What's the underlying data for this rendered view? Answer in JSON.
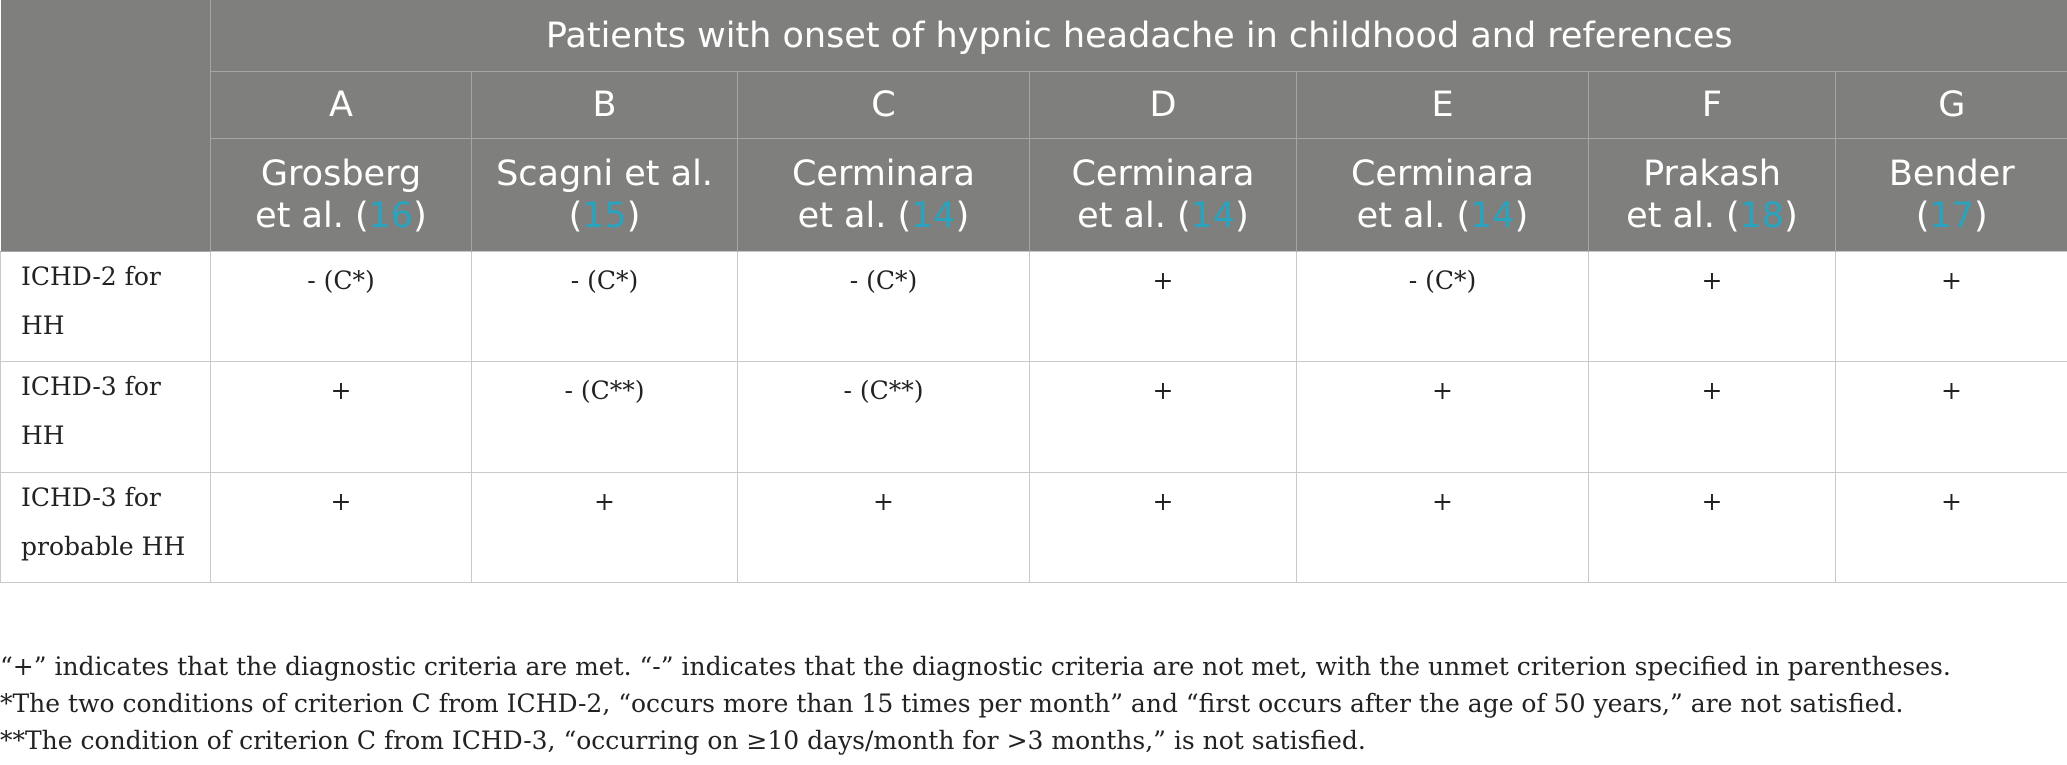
{
  "table": {
    "title": "Patients with onset of hypnic headache in childhood and references",
    "columns": [
      {
        "letter": "A",
        "author_line1": "Grosberg",
        "author_line2_pre": "et al. (",
        "ref": "16",
        "author_line2_post": ")"
      },
      {
        "letter": "B",
        "author_line1": "Scagni et al.",
        "author_line2_pre": "(",
        "ref": "15",
        "author_line2_post": ")"
      },
      {
        "letter": "C",
        "author_line1": "Cerminara",
        "author_line2_pre": "et al. (",
        "ref": "14",
        "author_line2_post": ")"
      },
      {
        "letter": "D",
        "author_line1": "Cerminara",
        "author_line2_pre": "et al. (",
        "ref": "14",
        "author_line2_post": ")"
      },
      {
        "letter": "E",
        "author_line1": "Cerminara",
        "author_line2_pre": "et al. (",
        "ref": "14",
        "author_line2_post": ")"
      },
      {
        "letter": "F",
        "author_line1": "Prakash",
        "author_line2_pre": "et al. (",
        "ref": "18",
        "author_line2_post": ")"
      },
      {
        "letter": "G",
        "author_line1": "Bender",
        "author_line2_pre": "(",
        "ref": "17",
        "author_line2_post": ")"
      }
    ],
    "rows": [
      {
        "label_line1": "ICHD-2 for",
        "label_line2": "HH",
        "cells": [
          "- (C*)",
          "- (C*)",
          "- (C*)",
          "+",
          "- (C*)",
          "+",
          "+"
        ]
      },
      {
        "label_line1": "ICHD-3 for",
        "label_line2": "HH",
        "cells": [
          "+",
          "- (C**)",
          "- (C**)",
          "+",
          "+",
          "+",
          "+"
        ]
      },
      {
        "label_line1": "ICHD-3 for",
        "label_line2": "probable HH",
        "cells": [
          "+",
          "+",
          "+",
          "+",
          "+",
          "+",
          "+"
        ]
      }
    ]
  },
  "footnotes": [
    "“+” indicates that the diagnostic criteria are met. “-” indicates that the diagnostic criteria are not met, with the unmet criterion specified in parentheses.",
    "*The two conditions of criterion C from ICHD-2, “occurs more than 15 times per month” and “first occurs after the age of 50 years,” are not satisfied.",
    "**The condition of criterion C from ICHD-3, “occurring on ≥10 days/month for >3 months,” is not satisfied."
  ],
  "colors": {
    "header_bg": "#7f7f7d",
    "ref_link": "#29a3be"
  }
}
